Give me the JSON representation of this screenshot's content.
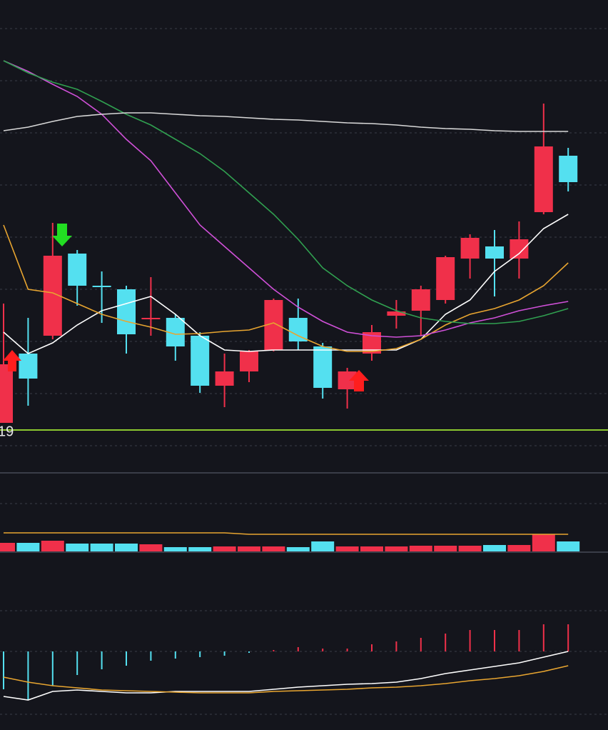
{
  "chart_data": [
    {
      "type": "candlestick",
      "ylim": [
        0,
        64
      ],
      "yticks": [
        1.6,
        8.9,
        16.2,
        23.5,
        30.8,
        38.1,
        45.4,
        52.7,
        60
      ],
      "grid": true,
      "up_color": "#f0304a",
      "down_color": "#54e0f0",
      "open": [
        4.8,
        14.5,
        17.0,
        28.5,
        24.0,
        23.5,
        19.3,
        19.5,
        17.0,
        10.0,
        12.0,
        15.0,
        19.5,
        15.5,
        9.5,
        14.5,
        19.8,
        20.5,
        22.0,
        27.8,
        29.5,
        27.8,
        34.3,
        42.2
      ],
      "high": [
        21.5,
        19.5,
        32.8,
        29.0,
        26.0,
        24.0,
        25.2,
        20.0,
        17.5,
        14.5,
        15.0,
        22.2,
        22.2,
        16.0,
        12.5,
        18.5,
        22.0,
        24.0,
        28.2,
        31.2,
        31.8,
        33.0,
        49.5,
        43.3
      ],
      "low": [
        4.8,
        7.2,
        16.5,
        21.2,
        18.8,
        14.5,
        17.0,
        13.5,
        9.0,
        7.0,
        10.5,
        14.8,
        15.0,
        8.2,
        6.8,
        13.5,
        18.0,
        17.0,
        21.5,
        25.0,
        22.5,
        25.0,
        34.0,
        37.2
      ],
      "close": [
        13.0,
        11.0,
        28.2,
        24.0,
        23.8,
        17.2,
        19.5,
        15.5,
        10.0,
        12.0,
        14.8,
        22.0,
        16.2,
        9.7,
        12.0,
        17.5,
        20.4,
        23.5,
        28.0,
        30.7,
        27.8,
        30.5,
        43.5,
        38.5
      ],
      "series": [
        {
          "color": "#ffffff",
          "values": [
            17.5,
            14.5,
            16.0,
            18.5,
            20.5,
            21.5,
            22.5,
            20.0,
            17.0,
            15.0,
            14.8,
            15.0,
            15.0,
            15.0,
            15.0,
            15.0,
            15.0,
            16.5,
            20.0,
            22.0,
            26.0,
            28.5,
            32.0,
            34.0
          ]
        },
        {
          "color": "#e8a530",
          "values": [
            32.5,
            23.5,
            23.0,
            21.5,
            20.0,
            19.0,
            18.2,
            17.2,
            17.3,
            17.6,
            17.8,
            18.8,
            17.0,
            15.5,
            14.8,
            14.8,
            15.2,
            16.5,
            18.5,
            20.0,
            20.8,
            22.0,
            24.0,
            27.2
          ]
        },
        {
          "color": "#d050d8",
          "values": [
            55.5,
            54.0,
            52.2,
            50.5,
            48.0,
            44.5,
            41.5,
            37.0,
            32.5,
            29.5,
            26.5,
            23.5,
            21.0,
            19.0,
            17.5,
            17.0,
            16.8,
            17.0,
            17.8,
            18.8,
            19.5,
            20.5,
            21.2,
            21.8
          ]
        },
        {
          "color": "#30a050",
          "values": [
            55.5,
            53.8,
            52.5,
            51.5,
            49.8,
            48.0,
            46.5,
            44.5,
            42.5,
            40.0,
            37.0,
            34.0,
            30.5,
            26.5,
            24.0,
            22.0,
            20.5,
            19.5,
            19.0,
            18.7,
            18.7,
            19.0,
            19.8,
            20.8
          ]
        },
        {
          "color": "#d8d8d8",
          "values": [
            45.7,
            46.2,
            47.0,
            47.7,
            48.0,
            48.2,
            48.2,
            48.0,
            47.8,
            47.7,
            47.5,
            47.3,
            47.2,
            47.0,
            46.8,
            46.7,
            46.5,
            46.2,
            46.0,
            45.9,
            45.7,
            45.6,
            45.6,
            45.6
          ]
        }
      ],
      "reference_line": {
        "value": 3.8,
        "label": "19",
        "color": "#8cc830"
      }
    },
    {
      "type": "bar",
      "ylim": [
        0,
        112
      ],
      "yticks": [
        67
      ],
      "grid": true,
      "values": [
        12,
        12,
        15,
        11,
        11,
        11,
        10,
        6,
        6,
        7,
        7,
        7,
        6,
        14,
        7,
        7,
        7,
        8,
        8,
        8,
        9,
        9,
        24,
        14
      ],
      "colors": [
        "#f0304a",
        "#54e0f0",
        "#f0304a",
        "#54e0f0",
        "#54e0f0",
        "#54e0f0",
        "#f0304a",
        "#54e0f0",
        "#54e0f0",
        "#f0304a",
        "#f0304a",
        "#f0304a",
        "#54e0f0",
        "#54e0f0",
        "#f0304a",
        "#f0304a",
        "#f0304a",
        "#f0304a",
        "#f0304a",
        "#f0304a",
        "#54e0f0",
        "#f0304a",
        "#f0304a",
        "#54e0f0"
      ],
      "series": [
        {
          "color": "#e8a530",
          "values": [
            26,
            26,
            26,
            26,
            26,
            26,
            26,
            26,
            26,
            26,
            24,
            24,
            24,
            24,
            24,
            24,
            24,
            24,
            24,
            24,
            24,
            24,
            24,
            24
          ]
        }
      ]
    },
    {
      "type": "histogram-lines",
      "ylim": [
        -88,
        112
      ],
      "yticks": [
        0,
        57
      ],
      "grid": true,
      "up_color": "#f0304a",
      "down_color": "#54e0f0",
      "values": [
        -53,
        -68,
        -48,
        -33,
        -25,
        -20,
        -13,
        -10,
        -8,
        -6,
        -2,
        2,
        6,
        4,
        4,
        10,
        14,
        19,
        25,
        30,
        30,
        30,
        38,
        38
      ],
      "series": [
        {
          "color": "#ffffff",
          "values": [
            -63,
            -68,
            -56,
            -54,
            -56,
            -58,
            -58,
            -56,
            -56,
            -56,
            -56,
            -53,
            -50,
            -48,
            -46,
            -45,
            -43,
            -38,
            -31,
            -26,
            -21,
            -16,
            -8,
            0
          ]
        },
        {
          "color": "#e8a530",
          "values": [
            -36,
            -43,
            -48,
            -51,
            -54,
            -55,
            -56,
            -57,
            -58,
            -58,
            -58,
            -56,
            -55,
            -54,
            -53,
            -51,
            -50,
            -48,
            -45,
            -41,
            -38,
            -34,
            -28,
            -20
          ]
        }
      ]
    }
  ]
}
